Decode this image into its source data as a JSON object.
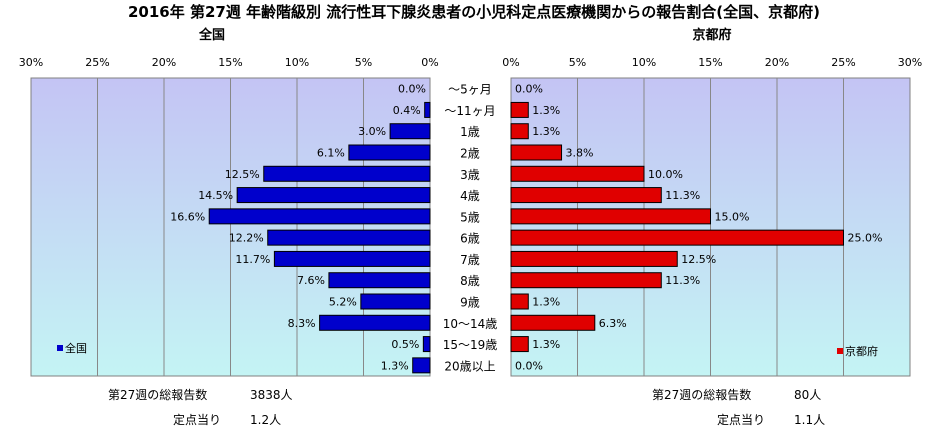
{
  "title": "2016年 第27週 年齢階級別 流行性耳下腺炎患者の小児科定点医療機関からの報告割合(全国、京都府)",
  "colors": {
    "national": "#0000cc",
    "kyoto": "#e00000",
    "plot_top": "#c4c4f4",
    "plot_bottom": "#c4f4f4",
    "grid": "#888888"
  },
  "chart_data": [
    {
      "type": "bar",
      "orientation": "horizontal",
      "side": "left",
      "panel_title": "全国",
      "legend": {
        "label": "全国",
        "placement": "bottom-left"
      },
      "xlim": [
        0,
        30
      ],
      "ticks": [
        "0%",
        "5%",
        "10%",
        "15%",
        "20%",
        "25%",
        "30%"
      ],
      "grid": true,
      "categories": [
        "～5ヶ月",
        "～11ヶ月",
        "1歳",
        "2歳",
        "3歳",
        "4歳",
        "5歳",
        "6歳",
        "7歳",
        "8歳",
        "9歳",
        "10～14歳",
        "15～19歳",
        "20歳以上"
      ],
      "values": [
        0.0,
        0.4,
        3.0,
        6.1,
        12.5,
        14.5,
        16.6,
        12.2,
        11.7,
        7.6,
        5.2,
        8.3,
        0.5,
        1.3
      ],
      "labels": [
        "0.0%",
        "0.4%",
        "3.0%",
        "6.1%",
        "12.5%",
        "14.5%",
        "16.6%",
        "12.2%",
        "11.7%",
        "7.6%",
        "5.2%",
        "8.3%",
        "0.5%",
        "1.3%"
      ]
    },
    {
      "type": "bar",
      "orientation": "horizontal",
      "side": "right",
      "panel_title": "京都府",
      "legend": {
        "label": "京都府",
        "placement": "bottom-right"
      },
      "xlim": [
        0,
        30
      ],
      "ticks": [
        "0%",
        "5%",
        "10%",
        "15%",
        "20%",
        "25%",
        "30%"
      ],
      "grid": true,
      "categories": [
        "～5ヶ月",
        "～11ヶ月",
        "1歳",
        "2歳",
        "3歳",
        "4歳",
        "5歳",
        "6歳",
        "7歳",
        "8歳",
        "9歳",
        "10～14歳",
        "15～19歳",
        "20歳以上"
      ],
      "values": [
        0.0,
        1.3,
        1.3,
        3.8,
        10.0,
        11.3,
        15.0,
        25.0,
        12.5,
        11.3,
        1.3,
        6.3,
        1.3,
        0.0
      ],
      "labels": [
        "0.0%",
        "1.3%",
        "1.3%",
        "3.8%",
        "10.0%",
        "11.3%",
        "15.0%",
        "25.0%",
        "12.5%",
        "11.3%",
        "1.3%",
        "6.3%",
        "1.3%",
        "0.0%"
      ]
    }
  ],
  "footer": {
    "left": {
      "total_label": "第27週の総報告数",
      "total_value": "3838人",
      "per_label": "定点当り",
      "per_value": "1.2人"
    },
    "right": {
      "total_label": "第27週の総報告数",
      "total_value": "80人",
      "per_label": "定点当り",
      "per_value": "1.1人"
    }
  }
}
